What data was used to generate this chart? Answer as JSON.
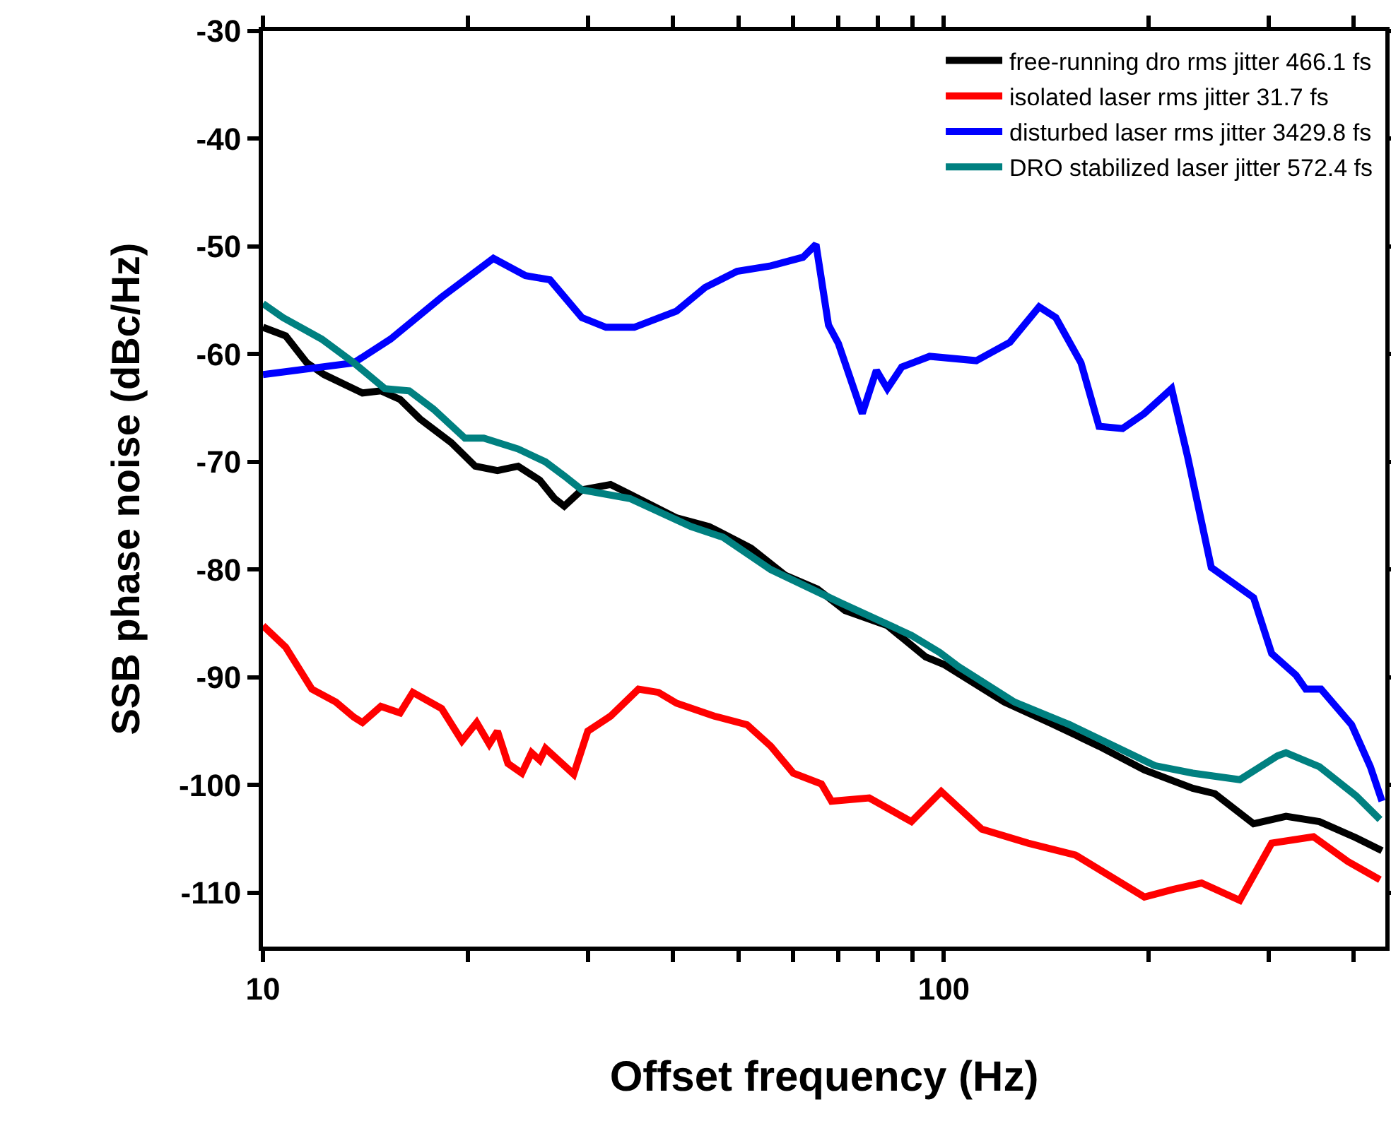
{
  "chart_data": {
    "type": "line",
    "xlabel": "Offset frequency (Hz)",
    "ylabel": "SSB phase noise (dBc/Hz)",
    "log": "x",
    "xlim": [
      10,
      445
    ],
    "xticks": [
      10,
      {
        "value": 20,
        "label": null
      },
      {
        "value": 30,
        "label": null
      },
      {
        "value": 40,
        "label": null
      },
      {
        "value": 50,
        "label": null
      },
      {
        "value": 60,
        "label": null
      },
      {
        "value": 70,
        "label": null
      },
      {
        "value": 80,
        "label": null
      },
      {
        "value": 90,
        "label": null
      },
      100,
      {
        "value": 200,
        "label": null
      },
      {
        "value": 300,
        "label": null
      },
      {
        "value": 400,
        "label": null
      }
    ],
    "ylim": [
      -115,
      -30
    ],
    "yticks": [
      -30,
      -40,
      -50,
      -60,
      -70,
      -80,
      -90,
      -100,
      -110
    ],
    "grid": false,
    "legend": "top right",
    "marker": "none",
    "line_style": "solid",
    "series": [
      {
        "name": "free-running dro rms jitter 466.1 fs",
        "color": "#000000",
        "x": [
          10,
          10.8,
          11.6,
          12.3,
          14.0,
          14.9,
          15.9,
          17.0,
          18.9,
          20.5,
          22.1,
          23.7,
          25.5,
          26.8,
          27.7,
          29.4,
          32.4,
          34.6,
          40.5,
          45.2,
          52.1,
          58.4,
          65.2,
          71.6,
          82.6,
          94.0,
          100,
          122.7,
          144,
          169,
          197,
          232,
          250,
          285,
          318,
          356,
          403,
          440
        ],
        "values": [
          -57.5,
          -58.3,
          -60.8,
          -61.9,
          -63.6,
          -63.4,
          -64.2,
          -66.0,
          -68.2,
          -70.4,
          -70.8,
          -70.4,
          -71.7,
          -73.4,
          -74.1,
          -72.6,
          -72.1,
          -73.0,
          -75.2,
          -76.0,
          -78.0,
          -80.5,
          -81.8,
          -83.8,
          -85.2,
          -88.1,
          -88.8,
          -92.3,
          -94.3,
          -96.4,
          -98.6,
          -100.3,
          -100.8,
          -103.6,
          -102.9,
          -103.4,
          -104.9,
          -106.1
        ]
      },
      {
        "name": "isolated laser rms jitter 31.7 fs",
        "color": "#ff0000",
        "x": [
          10,
          10.8,
          11.8,
          12.8,
          13.6,
          14.0,
          14.9,
          15.9,
          16.6,
          18.3,
          19.6,
          20.6,
          21.5,
          22.1,
          22.9,
          24.0,
          24.8,
          25.5,
          26.0,
          28.6,
          30.0,
          32.4,
          35.6,
          38.1,
          40.5,
          46.0,
          51.4,
          55.7,
          60.1,
          66.1,
          68.4,
          77.7,
          89.6,
          99.1,
          113.7,
          133,
          156,
          197,
          217,
          239,
          272,
          303,
          349,
          392,
          437
        ],
        "values": [
          -85.2,
          -87.2,
          -91.1,
          -92.3,
          -93.7,
          -94.2,
          -92.7,
          -93.3,
          -91.4,
          -92.9,
          -95.9,
          -94.2,
          -96.2,
          -95.0,
          -98.0,
          -98.9,
          -97.0,
          -97.7,
          -96.6,
          -99.0,
          -95.0,
          -93.6,
          -91.1,
          -91.4,
          -92.4,
          -93.6,
          -94.4,
          -96.4,
          -98.9,
          -99.9,
          -101.5,
          -101.2,
          -103.4,
          -100.6,
          -104.1,
          -105.4,
          -106.5,
          -110.4,
          -109.7,
          -109.1,
          -110.7,
          -105.4,
          -104.8,
          -107.1,
          -108.8
        ]
      },
      {
        "name": "disturbed laser rms jitter 3429.8 fs",
        "color": "#0000ff",
        "x": [
          10,
          13.6,
          15.4,
          18.3,
          21.8,
          24.3,
          26.4,
          29.4,
          31.9,
          35.1,
          40.5,
          44.6,
          49.7,
          55.7,
          62.1,
          64.9,
          67.7,
          70.0,
          75.9,
          79.6,
          82.6,
          86.7,
          95.3,
          111.6,
          125,
          138,
          146,
          159,
          169,
          183,
          197,
          216,
          228,
          247,
          285,
          303,
          329,
          340,
          358,
          397,
          423,
          440
        ],
        "values": [
          -61.9,
          -60.8,
          -58.6,
          -54.7,
          -51.1,
          -52.7,
          -53.1,
          -56.6,
          -57.5,
          -57.5,
          -56.0,
          -53.8,
          -52.3,
          -51.8,
          -51.0,
          -49.8,
          -57.3,
          -59.0,
          -65.5,
          -61.5,
          -63.2,
          -61.2,
          -60.2,
          -60.6,
          -58.9,
          -55.6,
          -56.6,
          -60.8,
          -66.7,
          -66.9,
          -65.5,
          -63.2,
          -69.5,
          -79.8,
          -82.6,
          -87.8,
          -89.8,
          -91.1,
          -91.1,
          -94.4,
          -98.3,
          -101.5
        ]
      },
      {
        "name": "DRO stabilized laser jitter 572.4 fs",
        "color": "#008080",
        "x": [
          10,
          10.7,
          12.2,
          13.6,
          15.1,
          16.4,
          17.8,
          19.8,
          21.1,
          23.7,
          26.0,
          27.7,
          29.4,
          34.6,
          42.5,
          47.4,
          55.7,
          70.6,
          89.6,
          98.6,
          105,
          127,
          153,
          204,
          232,
          272,
          309,
          318,
          356,
          403,
          437
        ],
        "values": [
          -55.3,
          -56.6,
          -58.6,
          -60.8,
          -63.2,
          -63.4,
          -65.1,
          -67.8,
          -67.8,
          -68.8,
          -70.0,
          -71.3,
          -72.6,
          -73.4,
          -76.0,
          -77.0,
          -80.0,
          -83.1,
          -86.1,
          -87.7,
          -89.0,
          -92.3,
          -94.4,
          -98.2,
          -98.9,
          -99.5,
          -97.3,
          -97.0,
          -98.3,
          -101.0,
          -103.2
        ]
      }
    ]
  }
}
